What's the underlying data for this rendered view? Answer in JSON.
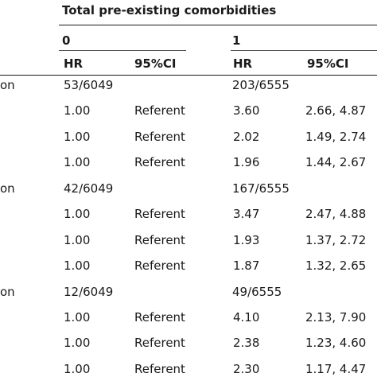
{
  "header": {
    "group_title": "Total pre-existing comorbidities",
    "groups": [
      {
        "label": "0",
        "hr_label": "HR",
        "ci_label": "95%CI"
      },
      {
        "label": "1",
        "hr_label": "HR",
        "ci_label": "95%CI"
      }
    ]
  },
  "sections": [
    {
      "row_label_fragment": "on",
      "counts": [
        "53/6049",
        "203/6555"
      ],
      "rows": [
        {
          "hr0": "1.00",
          "ci0": "Referent",
          "hr1": "3.60",
          "ci1": "2.66, 4.87"
        },
        {
          "hr0": "1.00",
          "ci0": "Referent",
          "hr1": "2.02",
          "ci1": "1.49, 2.74"
        },
        {
          "hr0": "1.00",
          "ci0": "Referent",
          "hr1": "1.96",
          "ci1": "1.44, 2.67"
        }
      ]
    },
    {
      "row_label_fragment": "on",
      "counts": [
        "42/6049",
        "167/6555"
      ],
      "rows": [
        {
          "hr0": "1.00",
          "ci0": "Referent",
          "hr1": "3.47",
          "ci1": "2.47, 4.88"
        },
        {
          "hr0": "1.00",
          "ci0": "Referent",
          "hr1": "1.93",
          "ci1": "1.37, 2.72"
        },
        {
          "hr0": "1.00",
          "ci0": "Referent",
          "hr1": "1.87",
          "ci1": "1.32, 2.65"
        }
      ]
    },
    {
      "row_label_fragment": "on",
      "counts": [
        "12/6049",
        "49/6555"
      ],
      "rows": [
        {
          "hr0": "1.00",
          "ci0": "Referent",
          "hr1": "4.10",
          "ci1": "2.13, 7.90"
        },
        {
          "hr0": "1.00",
          "ci0": "Referent",
          "hr1": "2.38",
          "ci1": "1.23, 4.60"
        },
        {
          "hr0": "1.00",
          "ci0": "Referent",
          "hr1": "2.30",
          "ci1": "1.17, 4.47"
        }
      ]
    }
  ]
}
